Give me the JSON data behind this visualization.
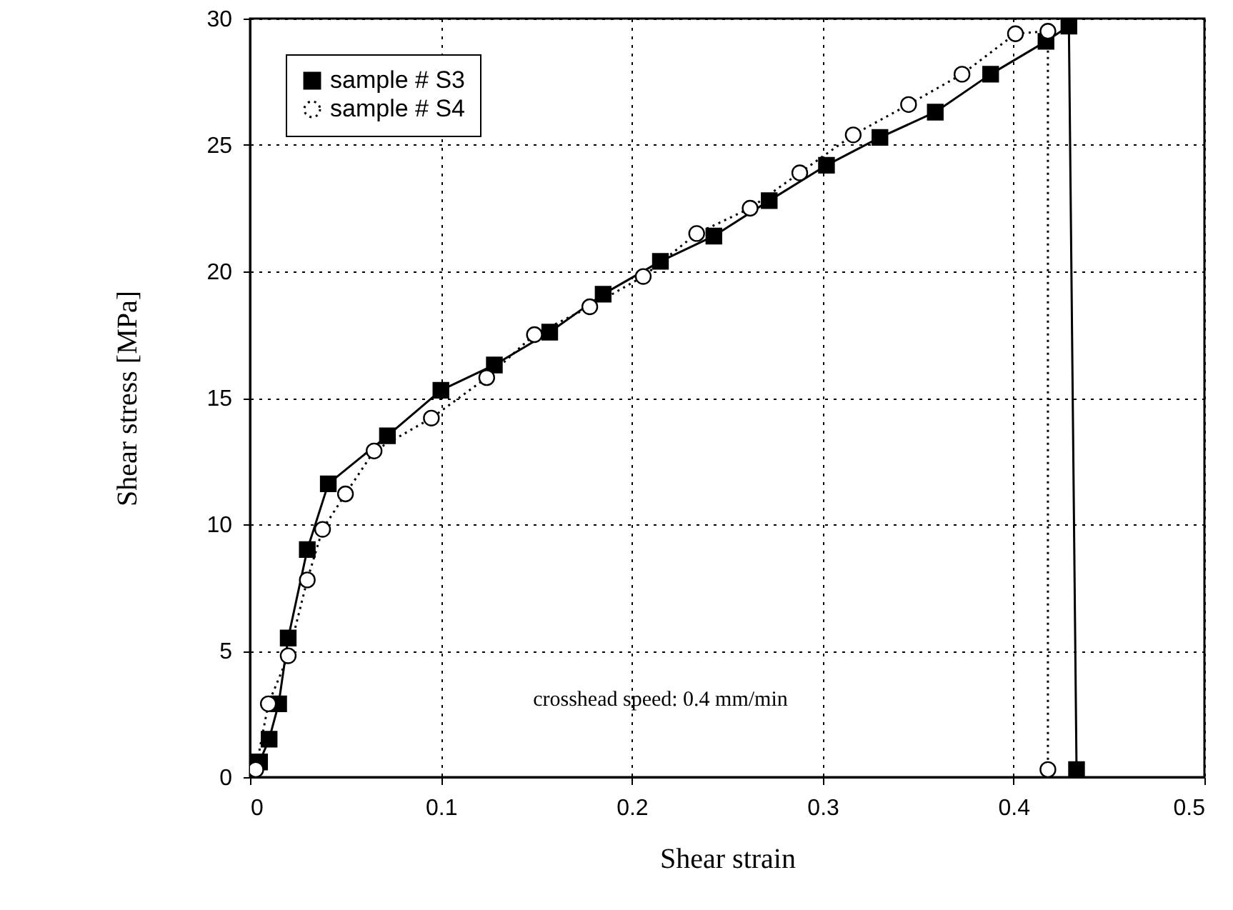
{
  "chart_data": {
    "type": "line",
    "xlabel": "Shear strain",
    "ylabel": "Shear stress [MPa]",
    "xlim": [
      0,
      0.5
    ],
    "ylim": [
      0,
      30
    ],
    "xticks": [
      0,
      0.1,
      0.2,
      0.3,
      0.4,
      0.5
    ],
    "yticks": [
      0,
      5,
      10,
      15,
      20,
      25,
      30
    ],
    "grid": true,
    "legend": "top left",
    "annotations": [
      "crosshead speed: 0.4 mm/min"
    ],
    "series": [
      {
        "name": "sample # S3",
        "color": "#000000",
        "marker": "square",
        "line_style": "solid",
        "x": [
          0,
          0.005,
          0.01,
          0.015,
          0.02,
          0.03,
          0.041,
          0.072,
          0.1,
          0.128,
          0.157,
          0.185,
          0.215,
          0.243,
          0.272,
          0.302,
          0.33,
          0.359,
          0.388,
          0.417,
          0.429,
          0.433
        ],
        "values": [
          0.3,
          0.6,
          1.5,
          2.9,
          5.5,
          9.0,
          11.6,
          13.5,
          15.3,
          16.3,
          17.6,
          19.1,
          20.4,
          21.4,
          22.8,
          24.2,
          25.3,
          26.3,
          27.8,
          29.1,
          29.7,
          0.3
        ]
      },
      {
        "name": "sample # S4",
        "color": "#000000",
        "marker": "circle",
        "line_style": "dotted",
        "x": [
          0.003,
          0.0096,
          0.02,
          0.03,
          0.038,
          0.05,
          0.065,
          0.095,
          0.124,
          0.149,
          0.178,
          0.206,
          0.234,
          0.262,
          0.288,
          0.316,
          0.345,
          0.373,
          0.401,
          0.418,
          0.418
        ],
        "values": [
          0.3,
          2.9,
          4.8,
          7.8,
          9.8,
          11.2,
          12.9,
          14.2,
          15.8,
          17.5,
          18.6,
          19.8,
          21.5,
          22.5,
          23.9,
          25.4,
          26.6,
          27.8,
          29.4,
          29.5,
          0.3
        ]
      }
    ]
  }
}
